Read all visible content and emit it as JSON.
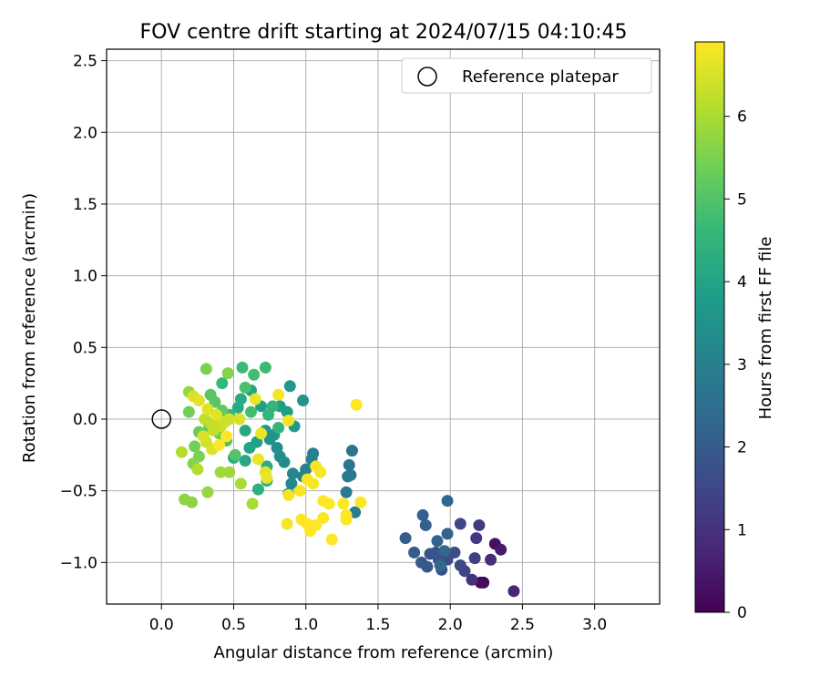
{
  "chart_data": {
    "type": "scatter",
    "title": "FOV centre drift starting at 2024/07/15 04:10:45",
    "xlabel": "Angular distance from reference (arcmin)",
    "ylabel": "Rotation from reference (arcmin)",
    "xlim": [
      -0.38,
      3.45
    ],
    "ylim": [
      -1.29,
      2.58
    ],
    "xticks": [
      0.0,
      0.5,
      1.0,
      1.5,
      2.0,
      2.5,
      3.0
    ],
    "xtick_labels": [
      "0.0",
      "0.5",
      "1.0",
      "1.5",
      "2.0",
      "2.5",
      "3.0"
    ],
    "yticks": [
      -1.0,
      -0.5,
      0.0,
      0.5,
      1.0,
      1.5,
      2.0,
      2.5
    ],
    "ytick_labels": [
      "−1.0",
      "−0.5",
      "0.0",
      "0.5",
      "1.0",
      "1.5",
      "2.0",
      "2.5"
    ],
    "grid": true,
    "legend": {
      "position": "top-right",
      "entries": [
        {
          "label": "Reference platepar",
          "marker": "open-circle"
        }
      ]
    },
    "reference_point": {
      "x": 0.0,
      "y": 0.0
    },
    "colorbar": {
      "label": "Hours from first FF file",
      "colormap": "viridis",
      "range": [
        0,
        6.9
      ],
      "ticks": [
        0,
        1,
        2,
        3,
        4,
        5,
        6
      ],
      "tick_labels": [
        "0",
        "1",
        "2",
        "3",
        "4",
        "5",
        "6"
      ]
    },
    "colormap_stops": [
      "#440154",
      "#482878",
      "#3e4989",
      "#31688e",
      "#26828e",
      "#1f9e89",
      "#35b779",
      "#6ece58",
      "#b5de2b",
      "#fde725"
    ],
    "points": [
      {
        "x": 2.23,
        "y": -1.14,
        "h": 0.1
      },
      {
        "x": 2.21,
        "y": -1.14,
        "h": 0.2
      },
      {
        "x": 2.31,
        "y": -0.87,
        "h": 0.3
      },
      {
        "x": 2.35,
        "y": -0.91,
        "h": 0.5
      },
      {
        "x": 2.44,
        "y": -1.2,
        "h": 0.7
      },
      {
        "x": 2.28,
        "y": -0.98,
        "h": 0.9
      },
      {
        "x": 2.15,
        "y": -1.12,
        "h": 1.0
      },
      {
        "x": 2.18,
        "y": -0.83,
        "h": 1.1
      },
      {
        "x": 2.2,
        "y": -0.74,
        "h": 1.2
      },
      {
        "x": 2.17,
        "y": -0.97,
        "h": 1.3
      },
      {
        "x": 2.1,
        "y": -1.06,
        "h": 1.4
      },
      {
        "x": 2.07,
        "y": -0.73,
        "h": 1.5
      },
      {
        "x": 2.07,
        "y": -1.02,
        "h": 1.5
      },
      {
        "x": 2.03,
        "y": -0.93,
        "h": 1.6
      },
      {
        "x": 1.98,
        "y": -0.98,
        "h": 1.6
      },
      {
        "x": 1.94,
        "y": -1.05,
        "h": 1.7
      },
      {
        "x": 1.92,
        "y": -0.98,
        "h": 1.7
      },
      {
        "x": 1.9,
        "y": -0.93,
        "h": 1.8
      },
      {
        "x": 1.86,
        "y": -0.94,
        "h": 1.8
      },
      {
        "x": 1.84,
        "y": -1.03,
        "h": 1.9
      },
      {
        "x": 1.8,
        "y": -1.0,
        "h": 1.9
      },
      {
        "x": 1.75,
        "y": -0.93,
        "h": 2.0
      },
      {
        "x": 1.69,
        "y": -0.83,
        "h": 2.0
      },
      {
        "x": 1.83,
        "y": -0.74,
        "h": 2.1
      },
      {
        "x": 1.81,
        "y": -0.67,
        "h": 2.1
      },
      {
        "x": 1.98,
        "y": -0.8,
        "h": 2.2
      },
      {
        "x": 1.91,
        "y": -0.85,
        "h": 2.2
      },
      {
        "x": 1.98,
        "y": -0.57,
        "h": 2.3
      },
      {
        "x": 1.96,
        "y": -0.92,
        "h": 2.3
      },
      {
        "x": 1.93,
        "y": -1.02,
        "h": 2.4
      },
      {
        "x": 1.32,
        "y": -0.22,
        "h": 2.6
      },
      {
        "x": 1.3,
        "y": -0.32,
        "h": 2.7
      },
      {
        "x": 1.31,
        "y": -0.39,
        "h": 2.7
      },
      {
        "x": 1.29,
        "y": -0.4,
        "h": 2.8
      },
      {
        "x": 1.28,
        "y": -0.51,
        "h": 2.8
      },
      {
        "x": 1.34,
        "y": -0.65,
        "h": 2.9
      },
      {
        "x": 1.05,
        "y": -0.24,
        "h": 3.0
      },
      {
        "x": 1.04,
        "y": -0.28,
        "h": 3.0
      },
      {
        "x": 1.0,
        "y": -0.35,
        "h": 3.1
      },
      {
        "x": 0.98,
        "y": -0.4,
        "h": 3.1
      },
      {
        "x": 0.91,
        "y": -0.38,
        "h": 3.2
      },
      {
        "x": 0.9,
        "y": -0.45,
        "h": 3.2
      },
      {
        "x": 0.88,
        "y": -0.52,
        "h": 3.3
      },
      {
        "x": 0.85,
        "y": -0.3,
        "h": 3.3
      },
      {
        "x": 0.82,
        "y": -0.26,
        "h": 3.4
      },
      {
        "x": 0.8,
        "y": -0.2,
        "h": 3.4
      },
      {
        "x": 0.78,
        "y": -0.11,
        "h": 3.5
      },
      {
        "x": 0.75,
        "y": -0.14,
        "h": 3.5
      },
      {
        "x": 0.72,
        "y": -0.08,
        "h": 3.6
      },
      {
        "x": 0.98,
        "y": 0.13,
        "h": 3.6
      },
      {
        "x": 0.89,
        "y": 0.23,
        "h": 3.7
      },
      {
        "x": 0.92,
        "y": -0.05,
        "h": 3.7
      },
      {
        "x": 0.87,
        "y": 0.05,
        "h": 3.8
      },
      {
        "x": 0.82,
        "y": 0.09,
        "h": 3.8
      },
      {
        "x": 0.69,
        "y": 0.09,
        "h": 3.9
      },
      {
        "x": 0.66,
        "y": -0.16,
        "h": 3.9
      },
      {
        "x": 0.62,
        "y": 0.2,
        "h": 4.0
      },
      {
        "x": 0.61,
        "y": -0.2,
        "h": 4.0
      },
      {
        "x": 0.58,
        "y": -0.08,
        "h": 4.1
      },
      {
        "x": 0.58,
        "y": -0.29,
        "h": 4.1
      },
      {
        "x": 0.55,
        "y": 0.14,
        "h": 4.2
      },
      {
        "x": 0.53,
        "y": 0.08,
        "h": 4.2
      },
      {
        "x": 0.5,
        "y": -0.27,
        "h": 4.3
      },
      {
        "x": 0.73,
        "y": -0.33,
        "h": 4.3
      },
      {
        "x": 0.73,
        "y": -0.43,
        "h": 4.4
      },
      {
        "x": 0.67,
        "y": -0.49,
        "h": 4.4
      },
      {
        "x": 0.81,
        "y": -0.06,
        "h": 4.5
      },
      {
        "x": 0.74,
        "y": 0.03,
        "h": 4.5
      },
      {
        "x": 0.77,
        "y": 0.09,
        "h": 4.5
      },
      {
        "x": 0.42,
        "y": 0.25,
        "h": 4.6
      },
      {
        "x": 0.47,
        "y": 0.03,
        "h": 4.6
      },
      {
        "x": 0.56,
        "y": 0.36,
        "h": 4.7
      },
      {
        "x": 0.72,
        "y": 0.36,
        "h": 4.7
      },
      {
        "x": 0.64,
        "y": 0.31,
        "h": 4.8
      },
      {
        "x": 0.62,
        "y": 0.05,
        "h": 4.8
      },
      {
        "x": 0.58,
        "y": 0.22,
        "h": 4.9
      },
      {
        "x": 0.45,
        "y": -0.15,
        "h": 4.9
      },
      {
        "x": 0.51,
        "y": -0.25,
        "h": 5.0
      },
      {
        "x": 0.34,
        "y": 0.17,
        "h": 5.1
      },
      {
        "x": 0.37,
        "y": 0.12,
        "h": 5.1
      },
      {
        "x": 0.42,
        "y": 0.06,
        "h": 5.2
      },
      {
        "x": 0.33,
        "y": -0.06,
        "h": 5.2
      },
      {
        "x": 0.4,
        "y": -0.1,
        "h": 5.3
      },
      {
        "x": 0.26,
        "y": -0.09,
        "h": 5.3
      },
      {
        "x": 0.19,
        "y": 0.05,
        "h": 5.4
      },
      {
        "x": 0.23,
        "y": -0.19,
        "h": 5.4
      },
      {
        "x": 0.26,
        "y": -0.26,
        "h": 5.5
      },
      {
        "x": 0.31,
        "y": 0.35,
        "h": 5.5
      },
      {
        "x": 0.46,
        "y": 0.32,
        "h": 5.6
      },
      {
        "x": 0.22,
        "y": -0.31,
        "h": 5.6
      },
      {
        "x": 0.16,
        "y": -0.56,
        "h": 5.7
      },
      {
        "x": 0.21,
        "y": -0.58,
        "h": 5.7
      },
      {
        "x": 0.32,
        "y": -0.51,
        "h": 5.8
      },
      {
        "x": 0.19,
        "y": 0.19,
        "h": 5.8
      },
      {
        "x": 0.41,
        "y": -0.37,
        "h": 5.9
      },
      {
        "x": 0.47,
        "y": -0.37,
        "h": 5.9
      },
      {
        "x": 0.55,
        "y": -0.45,
        "h": 6.0
      },
      {
        "x": 0.63,
        "y": -0.59,
        "h": 6.0
      },
      {
        "x": 0.14,
        "y": -0.23,
        "h": 6.1
      },
      {
        "x": 0.25,
        "y": -0.35,
        "h": 6.1
      },
      {
        "x": 0.3,
        "y": 0.0,
        "h": 6.2
      },
      {
        "x": 0.34,
        "y": -0.03,
        "h": 6.2
      },
      {
        "x": 0.36,
        "y": -0.08,
        "h": 6.3
      },
      {
        "x": 0.38,
        "y": -0.01,
        "h": 6.3
      },
      {
        "x": 0.41,
        "y": -0.05,
        "h": 6.3
      },
      {
        "x": 0.44,
        "y": -0.02,
        "h": 6.4
      },
      {
        "x": 0.47,
        "y": 0.0,
        "h": 6.4
      },
      {
        "x": 0.31,
        "y": -0.16,
        "h": 6.4
      },
      {
        "x": 0.35,
        "y": -0.21,
        "h": 6.5
      },
      {
        "x": 0.29,
        "y": -0.12,
        "h": 6.5
      },
      {
        "x": 0.54,
        "y": 0.0,
        "h": 6.5
      },
      {
        "x": 0.22,
        "y": 0.16,
        "h": 6.5
      },
      {
        "x": 0.26,
        "y": 0.13,
        "h": 6.6
      },
      {
        "x": 0.32,
        "y": 0.07,
        "h": 6.6
      },
      {
        "x": 0.38,
        "y": 0.03,
        "h": 6.6
      },
      {
        "x": 0.72,
        "y": -0.37,
        "h": 6.6
      },
      {
        "x": 0.73,
        "y": -0.41,
        "h": 6.7
      },
      {
        "x": 0.67,
        "y": -0.28,
        "h": 6.7
      },
      {
        "x": 0.65,
        "y": 0.14,
        "h": 6.7
      },
      {
        "x": 0.69,
        "y": -0.1,
        "h": 6.7
      },
      {
        "x": 0.81,
        "y": 0.17,
        "h": 6.8
      },
      {
        "x": 0.88,
        "y": -0.01,
        "h": 6.8
      },
      {
        "x": 0.88,
        "y": -0.53,
        "h": 6.8
      },
      {
        "x": 0.87,
        "y": -0.73,
        "h": 6.8
      },
      {
        "x": 0.96,
        "y": -0.5,
        "h": 6.85
      },
      {
        "x": 1.01,
        "y": -0.42,
        "h": 6.85
      },
      {
        "x": 1.05,
        "y": -0.45,
        "h": 6.85
      },
      {
        "x": 1.07,
        "y": -0.33,
        "h": 6.85
      },
      {
        "x": 1.1,
        "y": -0.37,
        "h": 6.85
      },
      {
        "x": 0.97,
        "y": -0.7,
        "h": 6.9
      },
      {
        "x": 1.01,
        "y": -0.73,
        "h": 6.9
      },
      {
        "x": 1.03,
        "y": -0.78,
        "h": 6.9
      },
      {
        "x": 1.07,
        "y": -0.74,
        "h": 6.9
      },
      {
        "x": 1.12,
        "y": -0.69,
        "h": 6.9
      },
      {
        "x": 1.18,
        "y": -0.84,
        "h": 6.9
      },
      {
        "x": 1.12,
        "y": -0.57,
        "h": 6.9
      },
      {
        "x": 1.16,
        "y": -0.59,
        "h": 6.9
      },
      {
        "x": 1.26,
        "y": -0.59,
        "h": 6.9
      },
      {
        "x": 1.28,
        "y": -0.67,
        "h": 6.9
      },
      {
        "x": 1.28,
        "y": -0.7,
        "h": 6.9
      },
      {
        "x": 1.38,
        "y": -0.58,
        "h": 6.9
      },
      {
        "x": 1.35,
        "y": 0.1,
        "h": 6.9
      },
      {
        "x": 0.45,
        "y": -0.12,
        "h": 6.9
      },
      {
        "x": 0.4,
        "y": -0.18,
        "h": 6.9
      }
    ]
  }
}
